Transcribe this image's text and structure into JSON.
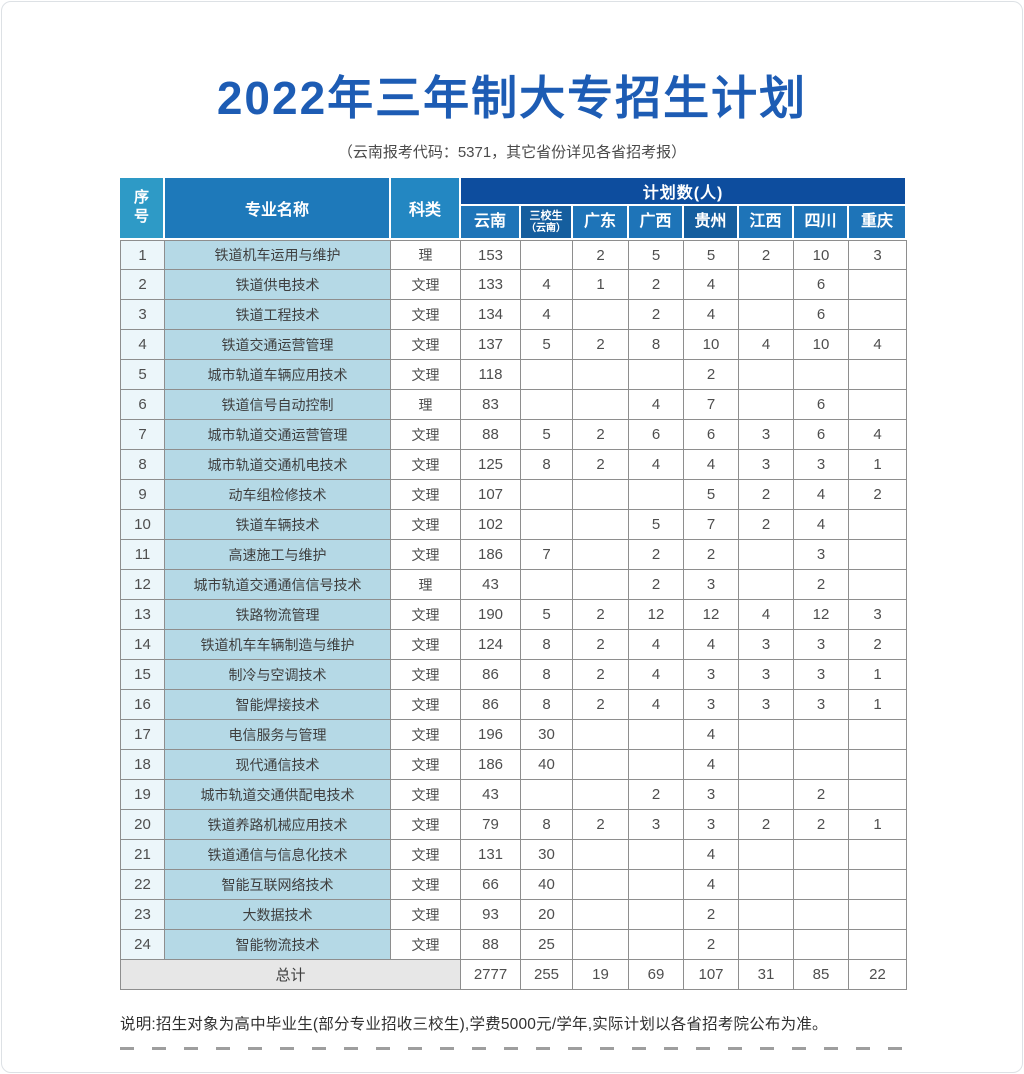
{
  "page": {
    "title": "2022年三年制大专招生计划",
    "subtitle": "（云南报考代码：5371，其它省份详见各省招考报）",
    "note": "说明:招生对象为高中毕业生(部分专业招收三校生),学费5000元/学年,实际计划以各省招考院公布为准。"
  },
  "colors": {
    "title_blue": "#1d5cb4",
    "banner_blue": "#0d4d9e",
    "province_header_blue": "#1e74b8",
    "province_header_dark_blue": "#155e9e",
    "index_header_cyan": "#2e9ac6",
    "major_column_bg": "#b5d9e6",
    "index_column_bg": "#ecf6fa",
    "total_row_bg": "#e7e7e7",
    "grid_border": "#8e8e8e"
  },
  "table": {
    "header": {
      "col_index": "序号",
      "col_major": "专业名称",
      "col_category": "科类",
      "plan_banner": "计划数(人)",
      "provinces": [
        {
          "label": "云南",
          "sub": ""
        },
        {
          "label": "三校生",
          "sub": "（云南）"
        },
        {
          "label": "广东",
          "sub": ""
        },
        {
          "label": "广西",
          "sub": ""
        },
        {
          "label": "贵州",
          "sub": ""
        },
        {
          "label": "江西",
          "sub": ""
        },
        {
          "label": "四川",
          "sub": ""
        },
        {
          "label": "重庆",
          "sub": ""
        }
      ]
    },
    "rows": [
      {
        "no": "1",
        "major": "铁道机车运用与维护",
        "category": "理",
        "values": [
          "153",
          "",
          "2",
          "5",
          "5",
          "2",
          "10",
          "3"
        ]
      },
      {
        "no": "2",
        "major": "铁道供电技术",
        "category": "文理",
        "values": [
          "133",
          "4",
          "1",
          "2",
          "4",
          "",
          "6",
          ""
        ]
      },
      {
        "no": "3",
        "major": "铁道工程技术",
        "category": "文理",
        "values": [
          "134",
          "4",
          "",
          "2",
          "4",
          "",
          "6",
          ""
        ]
      },
      {
        "no": "4",
        "major": "铁道交通运营管理",
        "category": "文理",
        "values": [
          "137",
          "5",
          "2",
          "8",
          "10",
          "4",
          "10",
          "4"
        ]
      },
      {
        "no": "5",
        "major": "城市轨道车辆应用技术",
        "category": "文理",
        "values": [
          "118",
          "",
          "",
          "",
          "2",
          "",
          "",
          ""
        ]
      },
      {
        "no": "6",
        "major": "铁道信号自动控制",
        "category": "理",
        "values": [
          "83",
          "",
          "",
          "4",
          "7",
          "",
          "6",
          ""
        ]
      },
      {
        "no": "7",
        "major": "城市轨道交通运营管理",
        "category": "文理",
        "values": [
          "88",
          "5",
          "2",
          "6",
          "6",
          "3",
          "6",
          "4"
        ]
      },
      {
        "no": "8",
        "major": "城市轨道交通机电技术",
        "category": "文理",
        "values": [
          "125",
          "8",
          "2",
          "4",
          "4",
          "3",
          "3",
          "1"
        ]
      },
      {
        "no": "9",
        "major": "动车组检修技术",
        "category": "文理",
        "values": [
          "107",
          "",
          "",
          "",
          "5",
          "2",
          "4",
          "2"
        ]
      },
      {
        "no": "10",
        "major": "铁道车辆技术",
        "category": "文理",
        "values": [
          "102",
          "",
          "",
          "5",
          "7",
          "2",
          "4",
          ""
        ]
      },
      {
        "no": "11",
        "major": "高速施工与维护",
        "category": "文理",
        "values": [
          "186",
          "7",
          "",
          "2",
          "2",
          "",
          "3",
          ""
        ]
      },
      {
        "no": "12",
        "major": "城市轨道交通通信信号技术",
        "category": "理",
        "values": [
          "43",
          "",
          "",
          "2",
          "3",
          "",
          "2",
          ""
        ]
      },
      {
        "no": "13",
        "major": "铁路物流管理",
        "category": "文理",
        "values": [
          "190",
          "5",
          "2",
          "12",
          "12",
          "4",
          "12",
          "3"
        ]
      },
      {
        "no": "14",
        "major": "铁道机车车辆制造与维护",
        "category": "文理",
        "values": [
          "124",
          "8",
          "2",
          "4",
          "4",
          "3",
          "3",
          "2"
        ]
      },
      {
        "no": "15",
        "major": "制冷与空调技术",
        "category": "文理",
        "values": [
          "86",
          "8",
          "2",
          "4",
          "3",
          "3",
          "3",
          "1"
        ]
      },
      {
        "no": "16",
        "major": "智能焊接技术",
        "category": "文理",
        "values": [
          "86",
          "8",
          "2",
          "4",
          "3",
          "3",
          "3",
          "1"
        ]
      },
      {
        "no": "17",
        "major": "电信服务与管理",
        "category": "文理",
        "values": [
          "196",
          "30",
          "",
          "",
          "4",
          "",
          "",
          ""
        ]
      },
      {
        "no": "18",
        "major": "现代通信技术",
        "category": "文理",
        "values": [
          "186",
          "40",
          "",
          "",
          "4",
          "",
          "",
          ""
        ]
      },
      {
        "no": "19",
        "major": "城市轨道交通供配电技术",
        "category": "文理",
        "values": [
          "43",
          "",
          "",
          "2",
          "3",
          "",
          "2",
          ""
        ]
      },
      {
        "no": "20",
        "major": "铁道养路机械应用技术",
        "category": "文理",
        "values": [
          "79",
          "8",
          "2",
          "3",
          "3",
          "2",
          "2",
          "1"
        ]
      },
      {
        "no": "21",
        "major": "铁道通信与信息化技术",
        "category": "文理",
        "values": [
          "131",
          "30",
          "",
          "",
          "4",
          "",
          "",
          ""
        ]
      },
      {
        "no": "22",
        "major": "智能互联网络技术",
        "category": "文理",
        "values": [
          "66",
          "40",
          "",
          "",
          "4",
          "",
          "",
          ""
        ]
      },
      {
        "no": "23",
        "major": "大数据技术",
        "category": "文理",
        "values": [
          "93",
          "20",
          "",
          "",
          "2",
          "",
          "",
          ""
        ]
      },
      {
        "no": "24",
        "major": "智能物流技术",
        "category": "文理",
        "values": [
          "88",
          "25",
          "",
          "",
          "2",
          "",
          "",
          ""
        ]
      }
    ],
    "total": {
      "label": "总计",
      "values": [
        "2777",
        "255",
        "19",
        "69",
        "107",
        "31",
        "85",
        "22"
      ]
    }
  }
}
